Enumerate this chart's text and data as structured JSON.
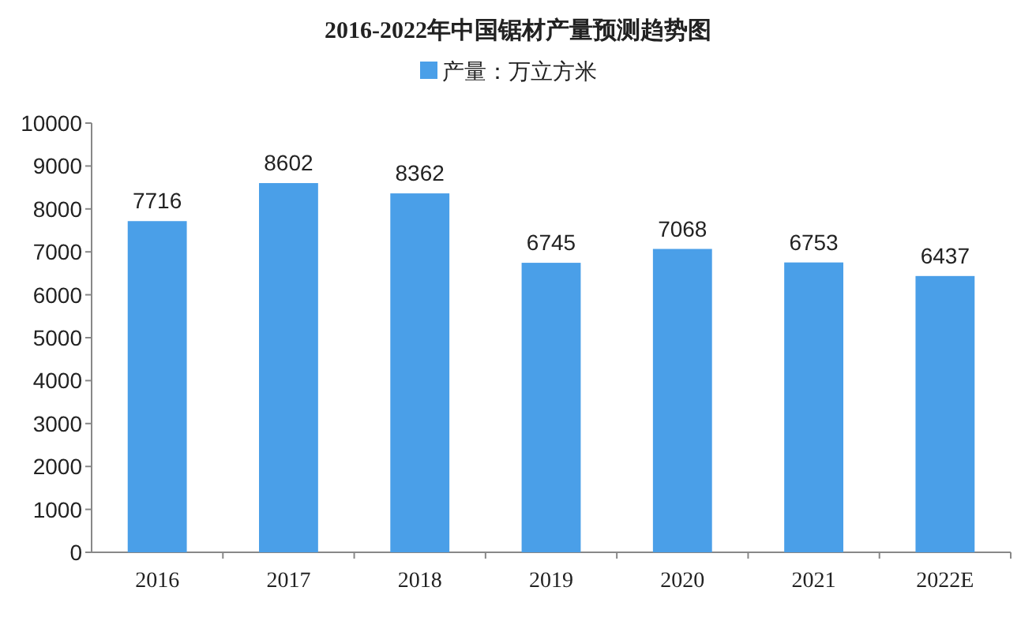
{
  "chart_data": {
    "type": "bar",
    "title": "2016-2022年中国锯材产量预测趋势图",
    "categories": [
      "2016",
      "2017",
      "2018",
      "2019",
      "2020",
      "2021",
      "2022E"
    ],
    "series": [
      {
        "name": "产量：万立方米",
        "color": "#4a9fe8",
        "values": [
          7716,
          8602,
          8362,
          6745,
          7068,
          6753,
          6437
        ]
      }
    ],
    "ylim": [
      0,
      10000
    ],
    "yticks": [
      0,
      1000,
      2000,
      3000,
      4000,
      5000,
      6000,
      7000,
      8000,
      9000,
      10000
    ],
    "data_labels": true,
    "legend": "top"
  }
}
